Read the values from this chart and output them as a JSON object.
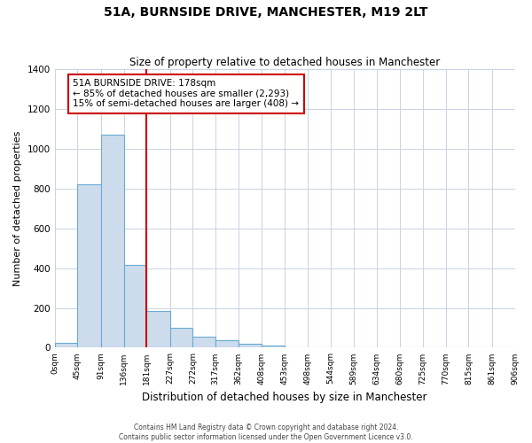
{
  "title": "51A, BURNSIDE DRIVE, MANCHESTER, M19 2LT",
  "subtitle": "Size of property relative to detached houses in Manchester",
  "xlabel": "Distribution of detached houses by size in Manchester",
  "ylabel": "Number of detached properties",
  "bar_color": "#cddcec",
  "bar_edge_color": "#6aaad4",
  "bin_edges": [
    0,
    45,
    91,
    136,
    181,
    227,
    272,
    317,
    362,
    408,
    453,
    498,
    544,
    589,
    634,
    680,
    725,
    770,
    815,
    861,
    906
  ],
  "bin_labels": [
    "0sqm",
    "45sqm",
    "91sqm",
    "136sqm",
    "181sqm",
    "227sqm",
    "272sqm",
    "317sqm",
    "362sqm",
    "408sqm",
    "453sqm",
    "498sqm",
    "544sqm",
    "589sqm",
    "634sqm",
    "680sqm",
    "725sqm",
    "770sqm",
    "815sqm",
    "861sqm",
    "906sqm"
  ],
  "bar_heights": [
    25,
    820,
    1070,
    415,
    185,
    100,
    55,
    38,
    18,
    10,
    0,
    0,
    0,
    0,
    0,
    0,
    0,
    0,
    0,
    0
  ],
  "ylim": [
    0,
    1400
  ],
  "yticks": [
    0,
    200,
    400,
    600,
    800,
    1000,
    1200,
    1400
  ],
  "vline_x": 181,
  "vline_color": "#cc0000",
  "annotation_title": "51A BURNSIDE DRIVE: 178sqm",
  "annotation_line1": "← 85% of detached houses are smaller (2,293)",
  "annotation_line2": "15% of semi-detached houses are larger (408) →",
  "footer_line1": "Contains HM Land Registry data © Crown copyright and database right 2024.",
  "footer_line2": "Contains public sector information licensed under the Open Government Licence v3.0.",
  "background_color": "#ffffff",
  "grid_color": "#c8d4e4"
}
